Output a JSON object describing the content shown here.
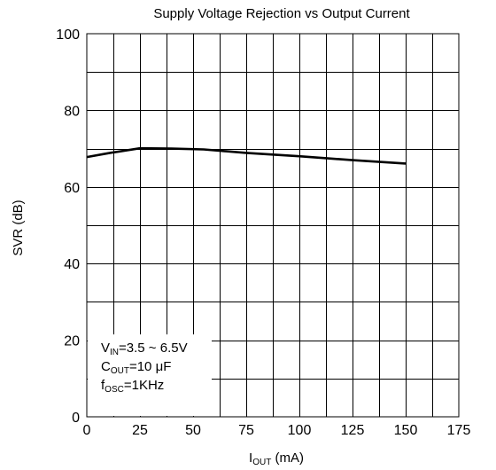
{
  "chart_data": {
    "type": "line",
    "title": "Supply Voltage Rejection vs Output Current",
    "xlabel": {
      "main": "I",
      "sub": "OUT",
      "rest": " (mA)"
    },
    "ylabel": "SVR (dB)",
    "xlim": [
      0,
      175
    ],
    "ylim": [
      0,
      100
    ],
    "x_ticks": [
      0,
      25,
      50,
      75,
      100,
      125,
      150,
      175
    ],
    "y_ticks": [
      0,
      20,
      40,
      60,
      80,
      100
    ],
    "x_tick_labels": [
      "0",
      "25",
      "50",
      "75",
      "100",
      "125",
      "150",
      "175"
    ],
    "y_tick_labels": [
      "0",
      "20",
      "40",
      "60",
      "80",
      "100"
    ],
    "grid": true,
    "grid_x_step": 12.5,
    "grid_y_step": 10,
    "series": [
      {
        "x": [
          0,
          10,
          25,
          40,
          55,
          75,
          100,
          125,
          150
        ],
        "y": [
          67.8,
          68.8,
          70.1,
          70.0,
          69.8,
          68.9,
          68.0,
          67.0,
          66.1
        ]
      }
    ],
    "annotations": [
      {
        "main": "V",
        "sub": "IN",
        "rest": "=3.5 ~ 6.5V"
      },
      {
        "main": "C",
        "sub": "OUT",
        "rest": "=10 μF"
      },
      {
        "main": "f",
        "sub": "OSC",
        "rest": "=1KHz"
      }
    ]
  }
}
